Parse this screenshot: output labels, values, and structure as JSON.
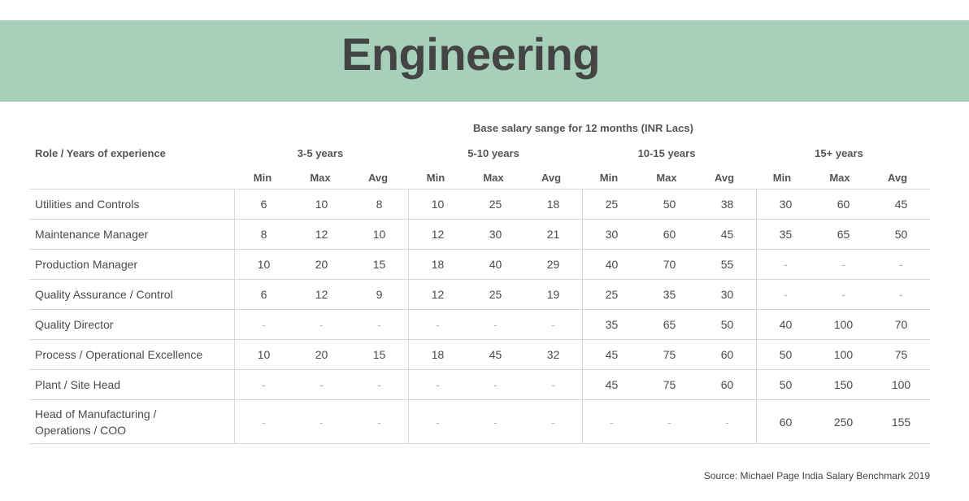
{
  "title": "Engineering",
  "table_caption": "Base salary sange for 12 months (INR Lacs)",
  "role_header": "Role / Years of experience",
  "groups": [
    "3-5 years",
    "5-10 years",
    "10-15 years",
    "15+ years"
  ],
  "sub_headers": [
    "Min",
    "Max",
    "Avg"
  ],
  "rows": [
    {
      "role": "Utilities and Controls",
      "values": [
        "6",
        "10",
        "8",
        "10",
        "25",
        "18",
        "25",
        "50",
        "38",
        "30",
        "60",
        "45"
      ]
    },
    {
      "role": "Maintenance Manager",
      "values": [
        "8",
        "12",
        "10",
        "12",
        "30",
        "21",
        "30",
        "60",
        "45",
        "35",
        "65",
        "50"
      ]
    },
    {
      "role": "Production Manager",
      "values": [
        "10",
        "20",
        "15",
        "18",
        "40",
        "29",
        "40",
        "70",
        "55",
        "-",
        "-",
        "-"
      ]
    },
    {
      "role": "Quality Assurance / Control",
      "values": [
        "6",
        "12",
        "9",
        "12",
        "25",
        "19",
        "25",
        "35",
        "30",
        "-",
        "-",
        "-"
      ]
    },
    {
      "role": "Quality Director",
      "values": [
        "-",
        "-",
        "-",
        "-",
        "-",
        "-",
        "35",
        "65",
        "50",
        "40",
        "100",
        "70"
      ]
    },
    {
      "role": "Process / Operational Excellence",
      "values": [
        "10",
        "20",
        "15",
        "18",
        "45",
        "32",
        "45",
        "75",
        "60",
        "50",
        "100",
        "75"
      ]
    },
    {
      "role": "Plant / Site Head",
      "values": [
        "-",
        "-",
        "-",
        "-",
        "-",
        "-",
        "45",
        "75",
        "60",
        "50",
        "150",
        "100"
      ]
    },
    {
      "role": "Head of Manufacturing / Operations / COO",
      "role_lines": [
        "Head of Manufacturing /",
        "Operations / COO"
      ],
      "values": [
        "-",
        "-",
        "-",
        "-",
        "-",
        "-",
        "-",
        "-",
        "-",
        "60",
        "250",
        "155"
      ]
    }
  ],
  "source": "Source: Michael Page India Salary Benchmark 2019"
}
